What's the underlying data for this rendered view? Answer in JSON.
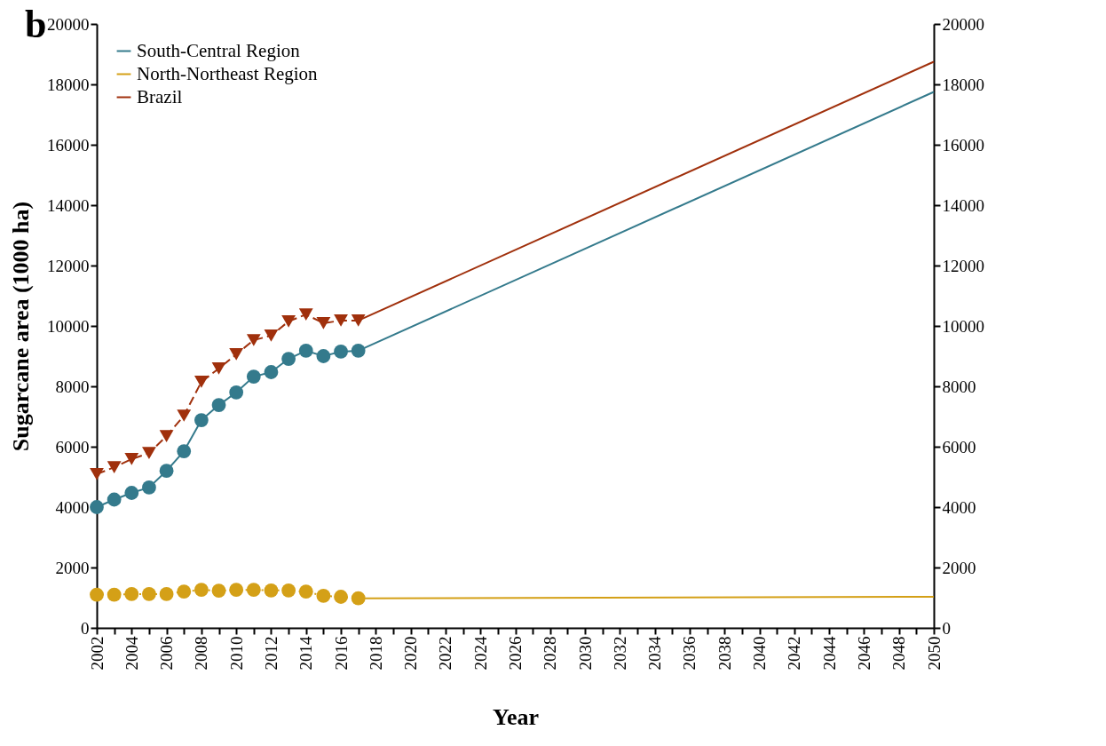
{
  "chart_data": {
    "type": "line",
    "xlabel": "Year",
    "ylabel": "Sugarcane area (1000 ha)",
    "annotations": [
      "b"
    ],
    "xlim": [
      2002,
      2050
    ],
    "xticks": [
      2002,
      {
        "value": 2003,
        "label": null
      },
      2004,
      {
        "value": 2005,
        "label": null
      },
      2006,
      {
        "value": 2007,
        "label": null
      },
      2008,
      {
        "value": 2009,
        "label": null
      },
      2010,
      {
        "value": 2011,
        "label": null
      },
      2012,
      {
        "value": 2013,
        "label": null
      },
      2014,
      {
        "value": 2015,
        "label": null
      },
      2016,
      {
        "value": 2017,
        "label": null
      },
      2018,
      {
        "value": 2019,
        "label": null
      },
      2020,
      {
        "value": 2021,
        "label": null
      },
      2022,
      {
        "value": 2023,
        "label": null
      },
      2024,
      {
        "value": 2025,
        "label": null
      },
      2026,
      {
        "value": 2027,
        "label": null
      },
      2028,
      {
        "value": 2029,
        "label": null
      },
      2030,
      {
        "value": 2031,
        "label": null
      },
      2032,
      {
        "value": 2033,
        "label": null
      },
      2034,
      {
        "value": 2035,
        "label": null
      },
      2036,
      {
        "value": 2037,
        "label": null
      },
      2038,
      {
        "value": 2039,
        "label": null
      },
      2040,
      {
        "value": 2041,
        "label": null
      },
      2042,
      {
        "value": 2043,
        "label": null
      },
      2044,
      {
        "value": 2045,
        "label": null
      },
      2046,
      {
        "value": 2047,
        "label": null
      },
      2048,
      {
        "value": 2049,
        "label": null
      },
      2050
    ],
    "ylim": [
      0,
      20000
    ],
    "yticks": [
      0,
      2000,
      4000,
      6000,
      8000,
      10000,
      12000,
      14000,
      16000,
      18000,
      20000
    ],
    "y2lim": [
      0,
      20000
    ],
    "y2ticks": [
      0,
      2000,
      4000,
      6000,
      8000,
      10000,
      12000,
      14000,
      16000,
      18000,
      20000
    ],
    "grid": false,
    "legend": "top left",
    "series": [
      {
        "name": "South-Central Region",
        "color": "#347a8c",
        "marker": "circle",
        "line_style": "solid",
        "x": [
          2002,
          2003,
          2004,
          2005,
          2006,
          2007,
          2008,
          2009,
          2010,
          2011,
          2012,
          2013,
          2014,
          2015,
          2016,
          2017
        ],
        "values": [
          4000,
          4250,
          4470,
          4650,
          5200,
          5850,
          6880,
          7380,
          7800,
          8320,
          8470,
          8910,
          9180,
          9000,
          9150,
          9180
        ]
      },
      {
        "name": "North-Northeast Region",
        "color": "#d4a017",
        "marker": "circle",
        "line_style": "dotted",
        "x": [
          2002,
          2003,
          2004,
          2005,
          2006,
          2007,
          2008,
          2009,
          2010,
          2011,
          2012,
          2013,
          2014,
          2015,
          2016,
          2017
        ],
        "values": [
          1100,
          1100,
          1120,
          1120,
          1120,
          1200,
          1260,
          1230,
          1260,
          1260,
          1240,
          1240,
          1200,
          1060,
          1030,
          980
        ]
      },
      {
        "name": "Brazil",
        "color": "#a0300c",
        "marker": "triangle",
        "line_style": "dashed",
        "x": [
          2002,
          2003,
          2004,
          2005,
          2006,
          2007,
          2008,
          2009,
          2010,
          2011,
          2012,
          2013,
          2014,
          2015,
          2016,
          2017
        ],
        "values": [
          5090,
          5320,
          5590,
          5790,
          6350,
          7030,
          8150,
          8590,
          9060,
          9530,
          9680,
          10150,
          10380,
          10090,
          10180,
          10180
        ]
      },
      {
        "color": "#347a8c",
        "marker": "none",
        "line_style": "solid",
        "x": [
          2017,
          2050
        ],
        "values": [
          9180,
          17750
        ]
      },
      {
        "color": "#d4a017",
        "marker": "none",
        "line_style": "solid",
        "x": [
          2017,
          2050
        ],
        "values": [
          980,
          1030
        ]
      },
      {
        "color": "#a0300c",
        "marker": "none",
        "line_style": "solid",
        "x": [
          2017,
          2050
        ],
        "values": [
          10180,
          18750
        ]
      }
    ]
  }
}
